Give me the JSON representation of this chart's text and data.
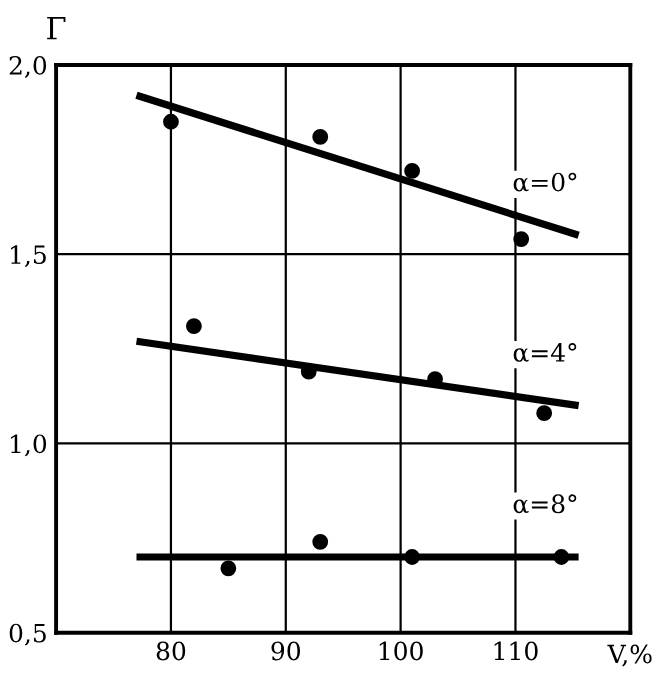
{
  "chart_data": {
    "type": "scatter",
    "xlabel": "V,%",
    "ylabel": "Γ",
    "xlim": [
      70,
      120
    ],
    "ylim": [
      0.5,
      2.0
    ],
    "xticks": [
      {
        "value": 70,
        "label": null
      },
      80,
      90,
      100,
      110,
      {
        "value": 120,
        "label": null
      }
    ],
    "yticks": [
      {
        "value": 0.5,
        "label": "0,5"
      },
      {
        "value": 1.0,
        "label": "1,0"
      },
      {
        "value": 1.5,
        "label": "1,5"
      },
      {
        "value": 2.0,
        "label": "2,0"
      }
    ],
    "grid": true,
    "series": [
      {
        "color": "#000000",
        "marker": "circle",
        "x": [
          80,
          93,
          101,
          110.5
        ],
        "values": [
          1.85,
          1.81,
          1.72,
          1.54
        ]
      },
      {
        "type": "line",
        "marker": "none",
        "color": "#000000",
        "x": [
          77,
          115.5
        ],
        "values": [
          1.92,
          1.55
        ]
      },
      {
        "color": "#000000",
        "marker": "circle",
        "x": [
          82,
          92,
          103,
          112.5
        ],
        "values": [
          1.31,
          1.19,
          1.17,
          1.08
        ]
      },
      {
        "type": "line",
        "marker": "none",
        "color": "#000000",
        "x": [
          77,
          115.5
        ],
        "values": [
          1.27,
          1.1
        ]
      },
      {
        "color": "#000000",
        "marker": "circle",
        "x": [
          85,
          93,
          101,
          114
        ],
        "values": [
          0.67,
          0.74,
          0.7,
          0.7
        ]
      },
      {
        "type": "line",
        "marker": "none",
        "color": "#000000",
        "x": [
          77,
          115.5
        ],
        "values": [
          0.7,
          0.7
        ]
      }
    ],
    "annotations": [
      "α=0°",
      "α=4°",
      "α=8°"
    ]
  }
}
